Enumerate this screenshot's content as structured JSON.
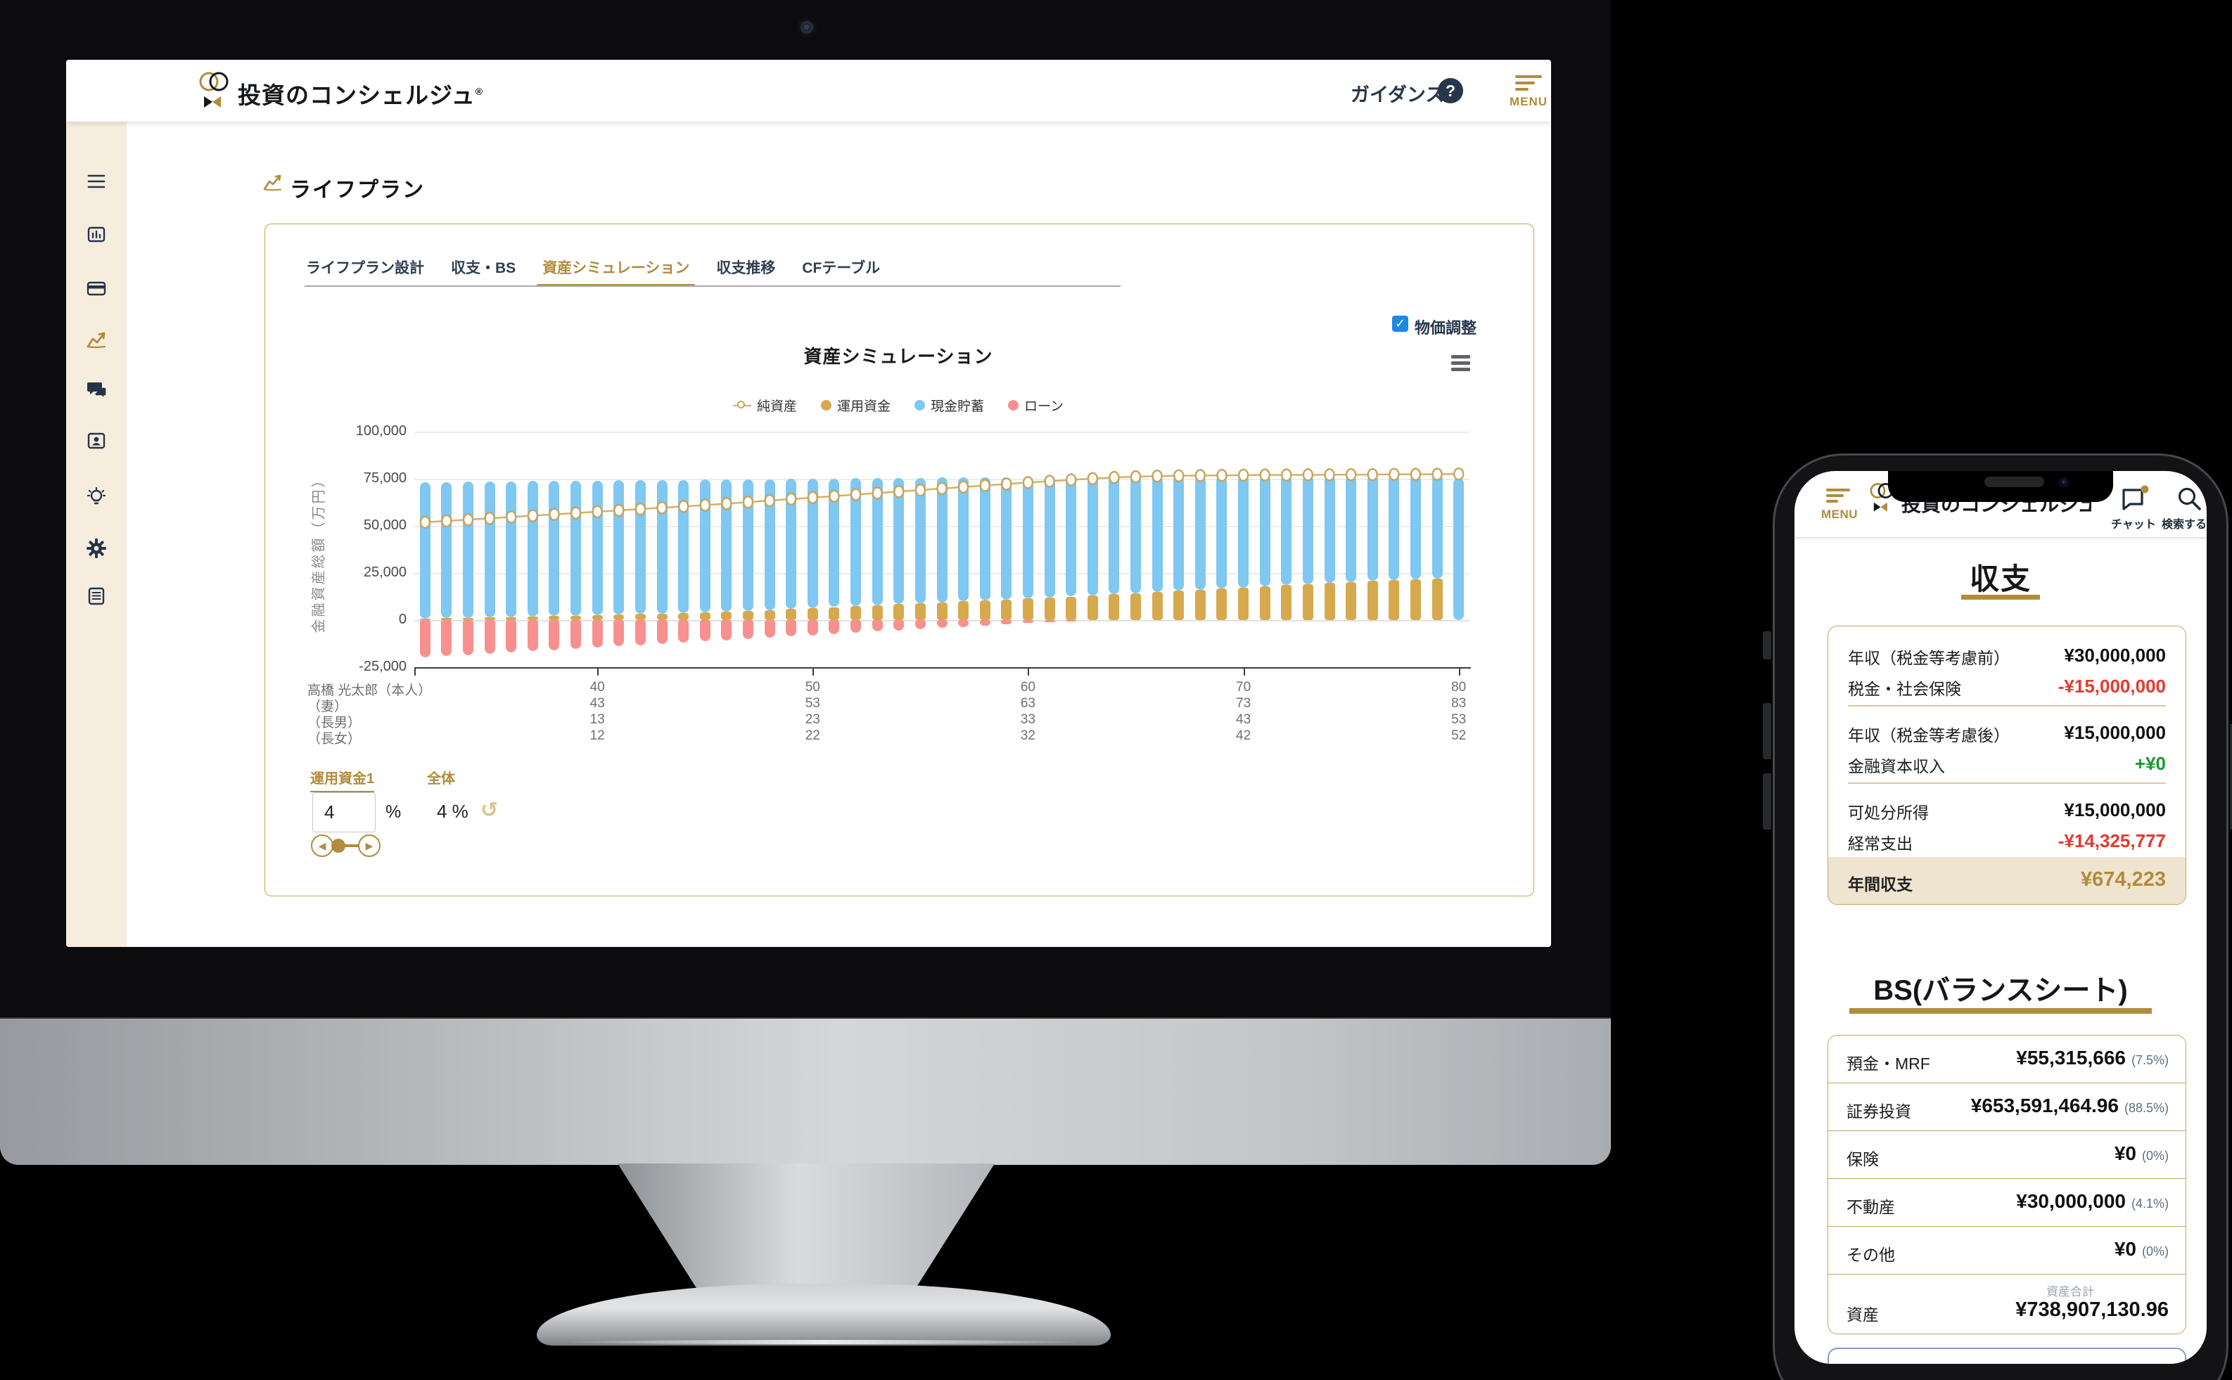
{
  "colors": {
    "brand_gold": "#B08C3C",
    "navy": "#26374B",
    "bar_blue": "#7EC8F1",
    "bar_gold": "#D7A94E",
    "bar_red": "#F8908F",
    "line_gold": "#D4B06A",
    "sidebar_beige": "#F6EDDF",
    "checkbox_blue": "#1E88E5",
    "negative_red": "#E43A2E",
    "positive_green": "#149C2E",
    "total_row_bg": "#EFE4CF"
  },
  "desktop": {
    "brand": "投資のコンシェルジュ",
    "brand_reg": "®",
    "guidance_label": "ガイダンス",
    "help_glyph": "?",
    "menu_label": "MENU",
    "sidebar_icons": [
      "menu",
      "bar-chart",
      "credit-card",
      "line-chart",
      "chat",
      "id-card",
      "lightbulb",
      "gear",
      "document"
    ],
    "sidebar_active_icon": "line-chart",
    "page_title": "ライフプラン",
    "tabs": [
      {
        "label": "ライフプラン設計",
        "active": false
      },
      {
        "label": "収支・BS",
        "active": false
      },
      {
        "label": "資産シミュレーション",
        "active": true
      },
      {
        "label": "収支推移",
        "active": false
      },
      {
        "label": "CFテーブル",
        "active": false
      }
    ],
    "price_adjust_label": "物価調整",
    "check_glyph": "✓",
    "controls": {
      "fund_tab": "運用資金1",
      "overall_tab": "全体",
      "fund_value": "4",
      "percent_sign": "%",
      "overall_value": "4 %",
      "undo_glyph": "↺",
      "slider_left_glyph": "◀",
      "slider_right_glyph": "▶"
    }
  },
  "chart_data": {
    "type": "stacked-bar+line",
    "title": "資産シミュレーション",
    "ylabel": "金融資産総額（万円）",
    "ylim": [
      -25000,
      100000
    ],
    "yticks": [
      100000,
      75000,
      50000,
      25000,
      0,
      -25000
    ],
    "ytick_labels": [
      "100,000",
      "75,000",
      "50,000",
      "25,000",
      "0",
      "-25,000"
    ],
    "first_age": 32,
    "x_tick_ages": [
      40,
      50,
      60,
      70,
      80
    ],
    "legend": [
      {
        "name": "純資産",
        "type": "line",
        "color": "#D4B06A"
      },
      {
        "name": "運用資金",
        "type": "bar",
        "color": "#D7A94E"
      },
      {
        "name": "現金貯蓄",
        "type": "bar",
        "color": "#7EC8F1"
      },
      {
        "name": "ローン",
        "type": "bar",
        "color": "#F8908F"
      }
    ],
    "series": {
      "invest": [
        900,
        1050,
        1200,
        1400,
        1600,
        1850,
        2100,
        2350,
        2600,
        2900,
        3200,
        3500,
        3800,
        4200,
        4600,
        5000,
        5400,
        5900,
        6400,
        6900,
        7400,
        7900,
        8400,
        8900,
        9400,
        9900,
        10400,
        10900,
        11400,
        11900,
        12500,
        13100,
        13700,
        14300,
        14900,
        15500,
        16100,
        16700,
        17300,
        17900,
        18500,
        19100,
        19700,
        20300,
        20800,
        21200,
        21600,
        21900,
        0
      ],
      "cash": [
        72300,
        72250,
        72200,
        72100,
        72000,
        71850,
        71700,
        71550,
        71400,
        71200,
        71000,
        70800,
        70600,
        70300,
        70000,
        69700,
        69400,
        69000,
        68600,
        68200,
        67800,
        67400,
        67000,
        66600,
        66200,
        65800,
        65400,
        65000,
        64600,
        64200,
        63700,
        63200,
        62600,
        62100,
        61500,
        61000,
        60400,
        59900,
        59300,
        58800,
        58200,
        57700,
        57100,
        56600,
        56100,
        55800,
        55400,
        55200,
        75500
      ],
      "loan": [
        -19800,
        -19150,
        -18500,
        -17850,
        -17200,
        -16550,
        -15900,
        -15250,
        -14600,
        -13950,
        -13300,
        -12650,
        -12000,
        -11350,
        -10700,
        -10050,
        -9400,
        -8750,
        -8100,
        -7450,
        -6800,
        -6150,
        -5500,
        -4850,
        -4200,
        -3550,
        -2900,
        -2250,
        -1600,
        -1000,
        -450,
        0,
        0,
        0,
        0,
        0,
        0,
        0,
        0,
        0,
        0,
        0,
        0,
        0,
        0,
        0,
        0,
        0,
        0
      ],
      "net": [
        51900,
        52600,
        53300,
        54000,
        54700,
        55400,
        56100,
        56800,
        57500,
        58200,
        58900,
        59600,
        60300,
        61000,
        61800,
        62600,
        63400,
        64200,
        65000,
        65800,
        66600,
        67400,
        68200,
        69000,
        69800,
        70600,
        71400,
        72200,
        73000,
        73700,
        74400,
        75100,
        75700,
        76100,
        76400,
        76600,
        76700,
        76800,
        76900,
        77000,
        77000,
        77100,
        77100,
        77200,
        77200,
        77300,
        77300,
        77400,
        77500
      ]
    },
    "family_rows": [
      {
        "label": "高橋 光太郎（本人）",
        "ages": [
          "40",
          "50",
          "60",
          "70",
          "80"
        ]
      },
      {
        "label": "（妻）",
        "ages": [
          "43",
          "53",
          "63",
          "73",
          "83"
        ]
      },
      {
        "label": "（長男）",
        "ages": [
          "13",
          "23",
          "33",
          "43",
          "53"
        ]
      },
      {
        "label": "（長女）",
        "ages": [
          "12",
          "22",
          "32",
          "42",
          "52"
        ]
      }
    ]
  },
  "phone": {
    "menu_label": "MENU",
    "brand": "投資のコンシェルジュ",
    "chat_label": "チャット",
    "search_label": "検索する",
    "income": {
      "title": "収支",
      "groups": [
        [
          {
            "label": "年収（税金等考慮前）",
            "value": "¥30,000,000",
            "tone": "normal"
          },
          {
            "label": "税金・社会保険",
            "value": "-¥15,000,000",
            "tone": "negative"
          }
        ],
        [
          {
            "label": "年収（税金等考慮後）",
            "value": "¥15,000,000",
            "tone": "normal"
          },
          {
            "label": "金融資本収入",
            "value": "+¥0",
            "tone": "positive"
          }
        ],
        [
          {
            "label": "可処分所得",
            "value": "¥15,000,000",
            "tone": "normal"
          },
          {
            "label": "経常支出",
            "value": "-¥14,325,777",
            "tone": "negative"
          }
        ]
      ],
      "total": {
        "label": "年間収支",
        "value": "¥674,223"
      }
    },
    "bs": {
      "title": "BS(バランスシート)",
      "rows": [
        {
          "label": "預金・MRF",
          "value": "¥55,315,666",
          "pct": "(7.5%)"
        },
        {
          "label": "証券投資",
          "value": "¥653,591,464.96",
          "pct": "(88.5%)"
        },
        {
          "label": "保険",
          "value": "¥0",
          "pct": "(0%)"
        },
        {
          "label": "不動産",
          "value": "¥30,000,000",
          "pct": "(4.1%)"
        },
        {
          "label": "その他",
          "value": "¥0",
          "pct": "(0%)"
        }
      ],
      "total": {
        "sub": "資産合計",
        "label": "資産",
        "value": "¥738,907,130.96"
      }
    }
  }
}
